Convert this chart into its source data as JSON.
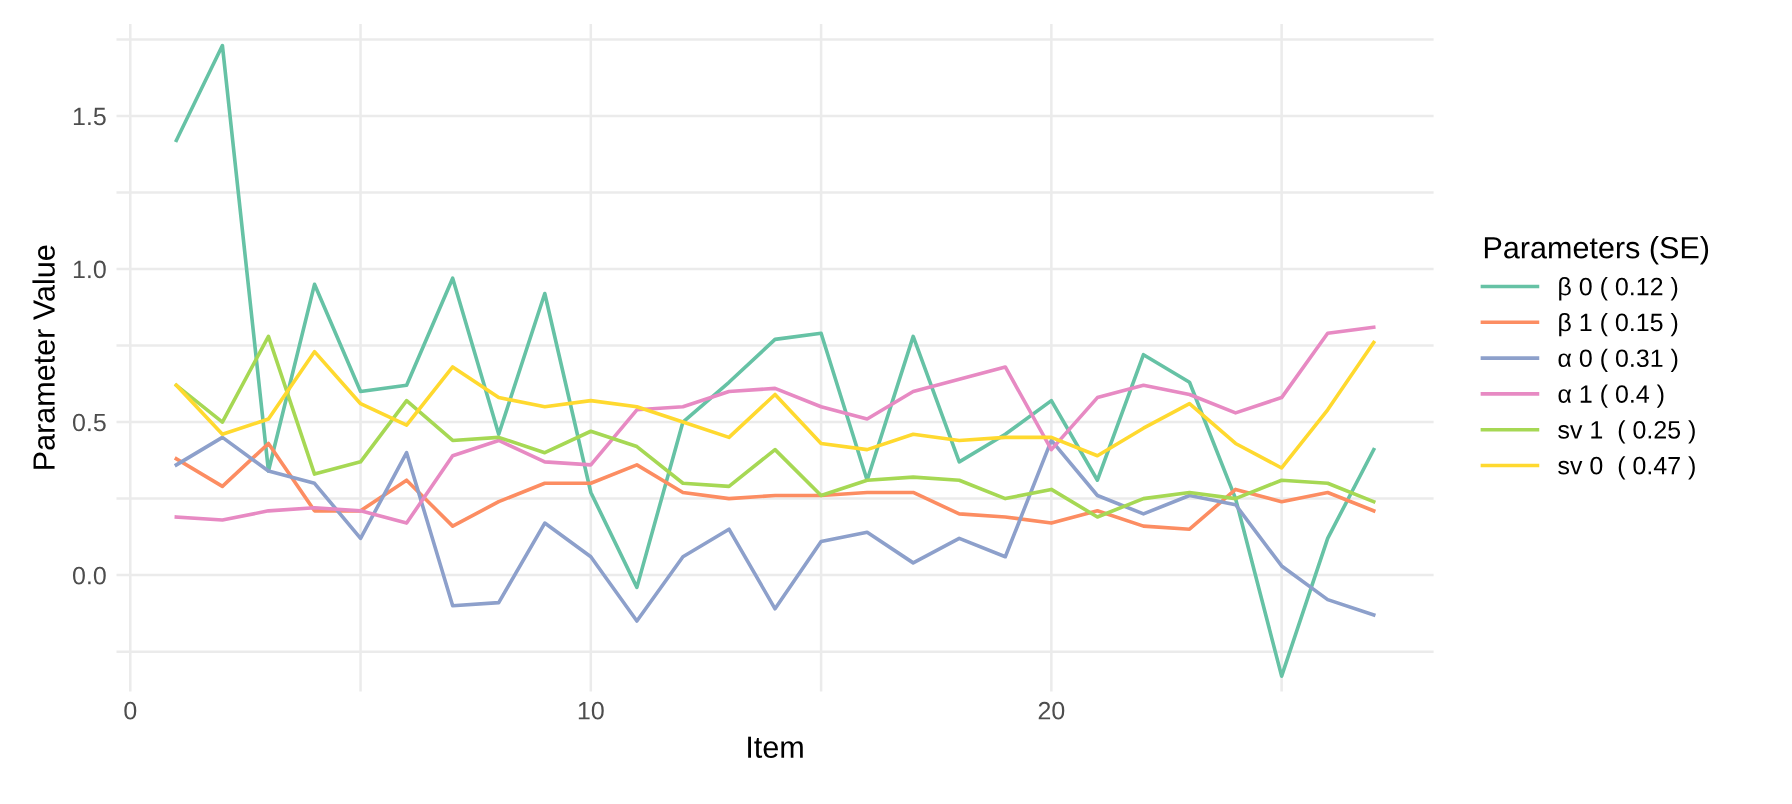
{
  "chart_data": {
    "type": "line",
    "xlabel": "Item",
    "ylabel": "Parameter Value",
    "legend_title": "Parameters (SE)",
    "x": [
      1,
      2,
      3,
      4,
      5,
      6,
      7,
      8,
      9,
      10,
      11,
      12,
      13,
      14,
      15,
      16,
      17,
      18,
      19,
      20,
      21,
      22,
      23,
      24,
      25,
      26,
      27
    ],
    "xlim": [
      -0.3,
      28.3
    ],
    "ylim": [
      -0.38,
      1.8
    ],
    "xticks": [
      0,
      {
        "value": 5,
        "label": null
      },
      10,
      {
        "value": 15,
        "label": null
      },
      20,
      {
        "value": 25,
        "label": null
      }
    ],
    "yticks": [
      {
        "value": -0.25,
        "label": null
      },
      {
        "value": 0,
        "label": "0.0"
      },
      {
        "value": 0.25,
        "label": null
      },
      {
        "value": 0.5,
        "label": "0.5"
      },
      {
        "value": 0.75,
        "label": null
      },
      {
        "value": 1,
        "label": "1.0"
      },
      {
        "value": 1.25,
        "label": null
      },
      {
        "value": 1.5,
        "label": "1.5"
      },
      {
        "value": 1.75,
        "label": null
      }
    ],
    "grid": true,
    "legend": "right",
    "line_style": "solid",
    "series": [
      {
        "name": "β 0 ( 0.12 )",
        "color": "#66c2a5",
        "values": [
          1.42,
          1.73,
          0.34,
          0.95,
          0.6,
          0.62,
          0.97,
          0.46,
          0.92,
          0.27,
          -0.04,
          0.5,
          0.63,
          0.77,
          0.79,
          0.31,
          0.78,
          0.37,
          0.46,
          0.57,
          0.31,
          0.72,
          0.63,
          0.25,
          -0.33,
          0.12,
          0.41
        ]
      },
      {
        "name": "β 1 ( 0.15 )",
        "color": "#fc8d62",
        "values": [
          0.38,
          0.29,
          0.43,
          0.21,
          0.21,
          0.31,
          0.16,
          0.24,
          0.3,
          0.3,
          0.36,
          0.27,
          0.25,
          0.26,
          0.26,
          0.27,
          0.27,
          0.2,
          0.19,
          0.17,
          0.21,
          0.16,
          0.15,
          0.28,
          0.24,
          0.27,
          0.21
        ]
      },
      {
        "name": "α 0 ( 0.31 )",
        "color": "#8da0cb",
        "values": [
          0.36,
          0.45,
          0.34,
          0.3,
          0.12,
          0.4,
          -0.1,
          -0.09,
          0.17,
          0.06,
          -0.15,
          0.06,
          0.15,
          -0.11,
          0.11,
          0.14,
          0.04,
          0.12,
          0.06,
          0.44,
          0.26,
          0.2,
          0.26,
          0.23,
          0.03,
          -0.08,
          -0.13
        ]
      },
      {
        "name": "α 1 ( 0.4 )",
        "color": "#e78ac3",
        "values": [
          0.19,
          0.18,
          0.21,
          0.22,
          0.21,
          0.17,
          0.39,
          0.44,
          0.37,
          0.36,
          0.54,
          0.55,
          0.6,
          0.61,
          0.55,
          0.51,
          0.6,
          0.64,
          0.68,
          0.41,
          0.58,
          0.62,
          0.59,
          0.53,
          0.58,
          0.79,
          0.81
        ]
      },
      {
        "name": "sv 1  ( 0.25 )",
        "color": "#a6d854",
        "values": [
          0.62,
          0.5,
          0.78,
          0.33,
          0.37,
          0.57,
          0.44,
          0.45,
          0.4,
          0.47,
          0.42,
          0.3,
          0.29,
          0.41,
          0.26,
          0.31,
          0.32,
          0.31,
          0.25,
          0.28,
          0.19,
          0.25,
          0.27,
          0.25,
          0.31,
          0.3,
          0.24
        ]
      },
      {
        "name": "sv 0  ( 0.47 )",
        "color": "#ffd92f",
        "values": [
          0.62,
          0.46,
          0.51,
          0.73,
          0.56,
          0.49,
          0.68,
          0.58,
          0.55,
          0.57,
          0.55,
          0.5,
          0.45,
          0.59,
          0.43,
          0.41,
          0.46,
          0.44,
          0.45,
          0.45,
          0.39,
          0.48,
          0.56,
          0.43,
          0.35,
          0.54,
          0.76
        ]
      }
    ]
  }
}
